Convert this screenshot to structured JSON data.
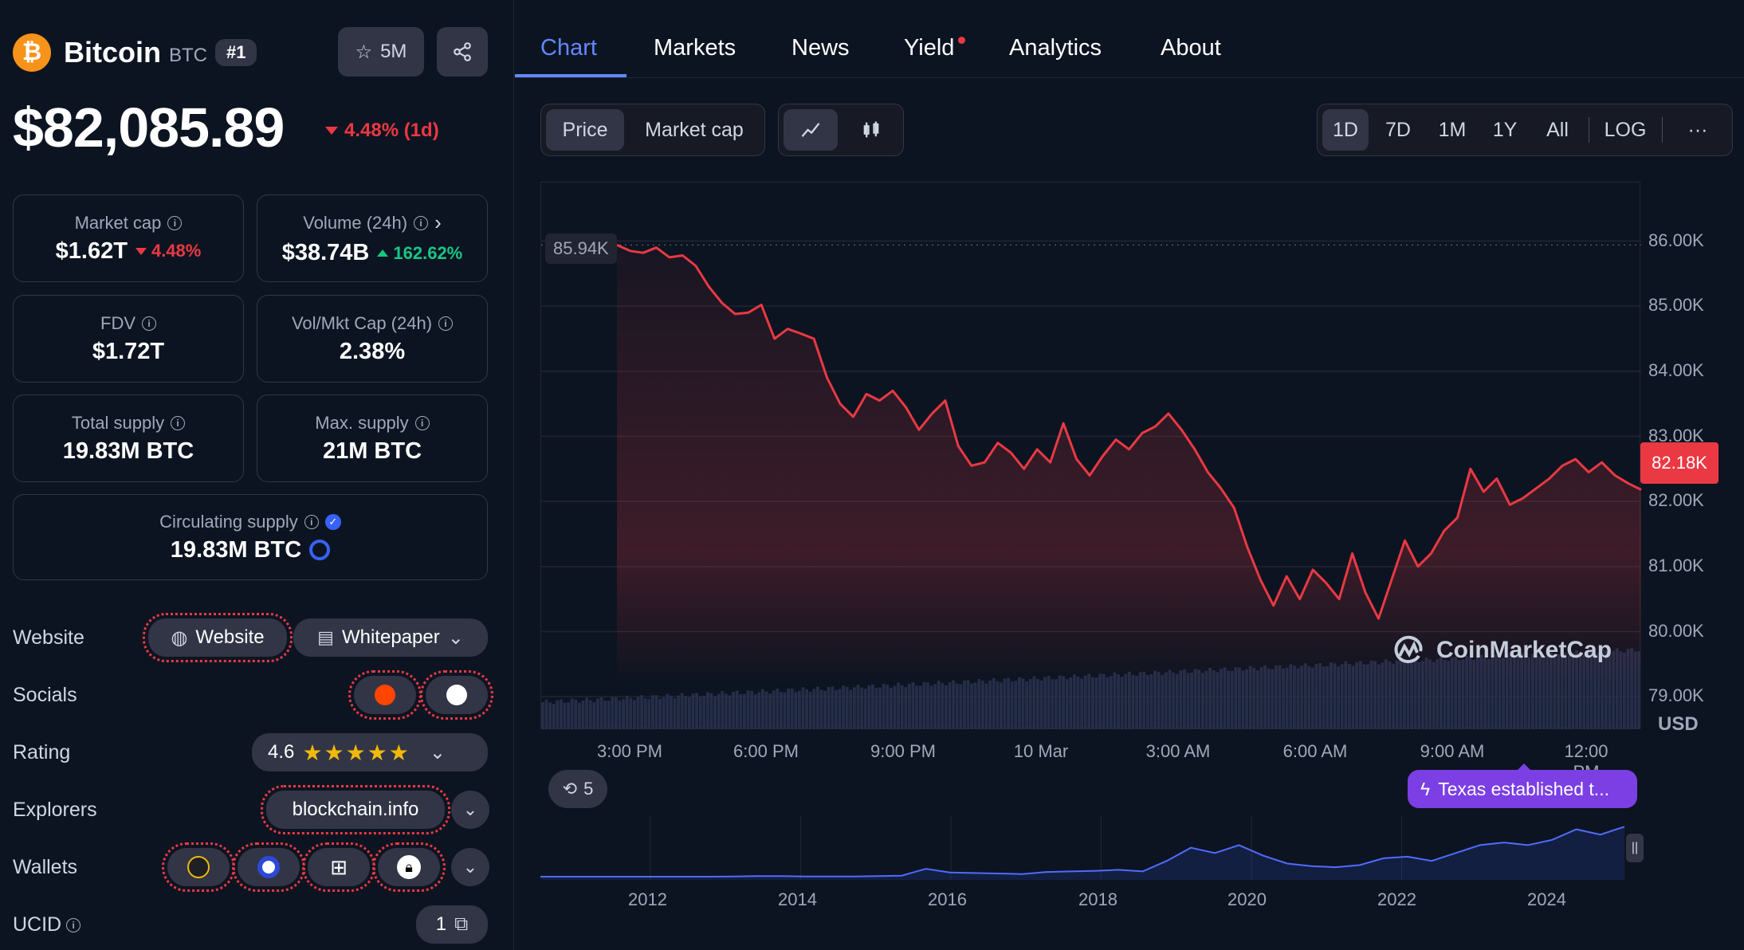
{
  "coin": {
    "logo_glyph": "₿",
    "name": "Bitcoin",
    "symbol": "BTC",
    "rank": "#1",
    "watchlist_count": "5M",
    "price": "$82,085.89",
    "change_1d": "4.48% (1d)"
  },
  "stats": {
    "market_cap": {
      "label": "Market cap",
      "value": "$1.62T",
      "change": "4.48%"
    },
    "volume": {
      "label": "Volume (24h)",
      "value": "$38.74B",
      "change": "162.62%"
    },
    "fdv": {
      "label": "FDV",
      "value": "$1.72T"
    },
    "vol_mkt": {
      "label": "Vol/Mkt Cap (24h)",
      "value": "2.38%"
    },
    "total_supply": {
      "label": "Total supply",
      "value": "19.83M BTC"
    },
    "max_supply": {
      "label": "Max. supply",
      "value": "21M BTC"
    },
    "circulating": {
      "label": "Circulating supply",
      "value": "19.83M BTC"
    }
  },
  "links": {
    "website_label": "Website",
    "website_btn": "Website",
    "whitepaper_btn": "Whitepaper",
    "socials_label": "Socials",
    "rating_label": "Rating",
    "rating_value": "4.6",
    "rating_stars": "★★★★★",
    "explorers_label": "Explorers",
    "explorer_btn": "blockchain.info",
    "wallets_label": "Wallets",
    "ucid_label": "UCID",
    "ucid_value": "1"
  },
  "tabs": [
    "Chart",
    "Markets",
    "News",
    "Yield",
    "Analytics",
    "About"
  ],
  "chart_controls": {
    "price": "Price",
    "market_cap": "Market cap",
    "ranges": [
      "1D",
      "7D",
      "1M",
      "1Y",
      "All",
      "LOG"
    ],
    "more": "···"
  },
  "chart": {
    "high_tag": "85.94K",
    "current_tag": "82.18K",
    "watermark": "CoinMarketCap",
    "currency": "USD",
    "events_count": "5",
    "news_text": "Texas established t..."
  },
  "chart_data": {
    "type": "line",
    "series": [
      {
        "values": [
          85.94,
          85.85,
          85.82,
          85.9,
          85.75,
          85.78,
          85.62,
          85.3,
          85.05,
          84.88,
          84.9,
          85.02,
          84.5,
          84.65,
          84.58,
          84.5,
          83.9,
          83.5,
          83.3,
          83.65,
          83.55,
          83.7,
          83.45,
          83.1,
          83.35,
          83.55,
          82.85,
          82.55,
          82.6,
          82.9,
          82.75,
          82.5,
          82.8,
          82.6,
          83.2,
          82.65,
          82.4,
          82.7,
          82.95,
          82.8,
          83.05,
          83.15,
          83.35,
          83.1,
          82.8,
          82.45,
          82.2,
          81.9,
          81.3,
          80.8,
          80.4,
          80.85,
          80.5,
          80.95,
          80.75,
          80.5,
          81.2,
          80.6,
          80.2,
          80.8,
          81.4,
          81.0,
          81.2,
          81.55,
          81.75,
          82.5,
          82.15,
          82.35,
          81.95,
          82.05,
          82.2,
          82.35,
          82.55,
          82.65,
          82.45,
          82.6,
          82.4,
          82.28,
          82.18
        ]
      }
    ],
    "x_tick_labels": [
      "3:00 PM",
      "6:00 PM",
      "9:00 PM",
      "10 Mar",
      "3:00 AM",
      "6:00 AM",
      "9:00 AM",
      "12:00 PM"
    ],
    "y_tick_labels": [
      "86.00K",
      "85.00K",
      "84.00K",
      "83.00K",
      "82.00K",
      "81.00K",
      "80.00K",
      "79.00K"
    ],
    "ylim": [
      78.5,
      86.9
    ],
    "overview": {
      "x_tick_labels": [
        "2012",
        "2014",
        "2016",
        "2018",
        "2020",
        "2022",
        "2024"
      ],
      "values": [
        0,
        0,
        0,
        0,
        0,
        0,
        0,
        0,
        0.005,
        0.01,
        0.01,
        0.005,
        0.005,
        0.005,
        0.01,
        0.02,
        0.15,
        0.08,
        0.07,
        0.06,
        0.05,
        0.09,
        0.1,
        0.11,
        0.13,
        0.1,
        0.3,
        0.55,
        0.45,
        0.6,
        0.4,
        0.25,
        0.2,
        0.18,
        0.22,
        0.35,
        0.38,
        0.3,
        0.45,
        0.6,
        0.65,
        0.6,
        0.7,
        0.9,
        0.8,
        0.95
      ]
    }
  },
  "colors": {
    "background": "#0d1421",
    "accent": "#6188ff",
    "down": "#ea3943",
    "up": "#16c784",
    "news": "#7b3fe4"
  }
}
